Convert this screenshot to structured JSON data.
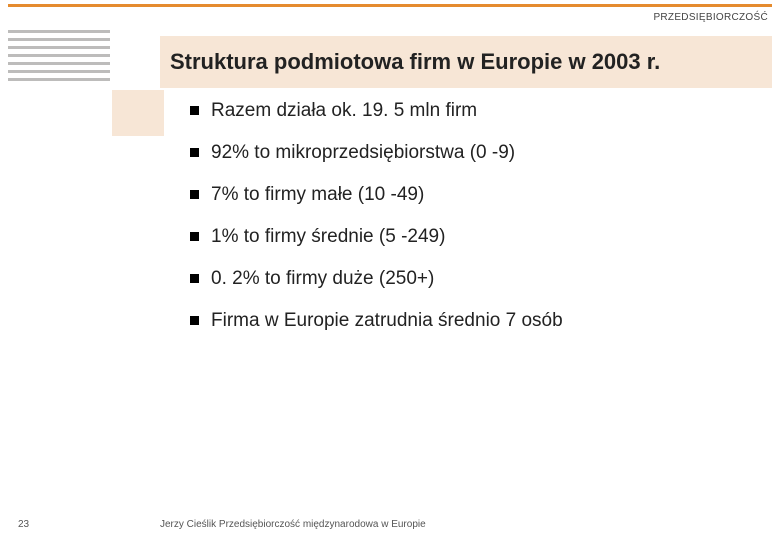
{
  "header": {
    "top_label": "PRZEDSIĘBIORCZOŚĆ",
    "title": "Struktura podmiotowa firm w Europie w 2003 r."
  },
  "bullets": [
    "Razem działa ok. 19. 5 mln firm",
    "92% to mikroprzedsiębiorstwa (0 -9)",
    "7% to firmy małe (10 -49)",
    "1% to firmy średnie (5 -249)",
    "0. 2% to firmy duże (250+)",
    "Firma w Europie zatrudnia średnio 7 osób"
  ],
  "footer": "Jerzy Cieślik Przedsiębiorczość międzynarodowa w Europie",
  "page_number": "23",
  "colors": {
    "accent_orange": "#e58b2e",
    "band_beige": "#f7e6d6",
    "decor_gray": "#bdbcbb"
  }
}
